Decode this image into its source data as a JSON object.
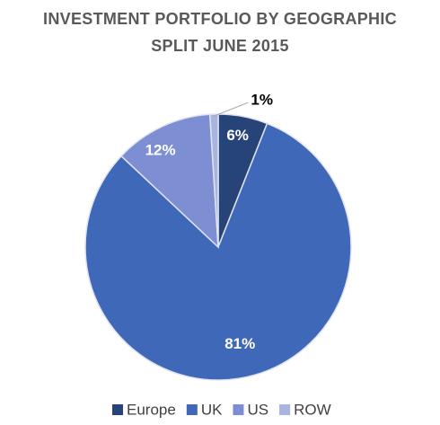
{
  "chart_data": {
    "type": "pie",
    "title": "INVESTMENT PORTFOLIO BY GEOGRAPHIC SPLIT JUNE 2015",
    "categories": [
      "Europe",
      "UK",
      "US",
      "ROW"
    ],
    "values": [
      6,
      81,
      12,
      1
    ],
    "value_labels": [
      "6%",
      "81%",
      "12%",
      "1%"
    ],
    "colors": [
      "#264478",
      "#4068b8",
      "#7d8fd2",
      "#a8b5e0"
    ],
    "legend": "bottom"
  }
}
